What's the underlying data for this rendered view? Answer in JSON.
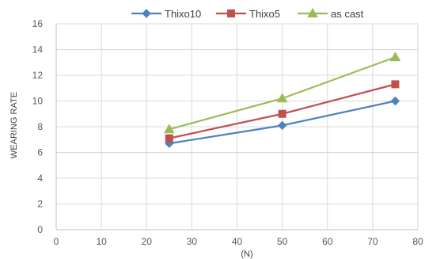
{
  "chart_data": {
    "type": "line",
    "title": "",
    "xlabel": "(N)",
    "ylabel": "WEARING RATE",
    "xlim": [
      0,
      80
    ],
    "ylim": [
      0,
      16
    ],
    "x_ticks": [
      "0",
      "10",
      "20",
      "30",
      "40",
      "50",
      "60",
      "70",
      "80"
    ],
    "y_ticks": [
      "0",
      "2",
      "4",
      "6",
      "8",
      "10",
      "12",
      "14",
      "16"
    ],
    "grid": true,
    "legend_position": "top",
    "series": [
      {
        "name": "Thixo10",
        "color": "#4F81BD",
        "marker": "diamond",
        "x": [
          25,
          50,
          75
        ],
        "values": [
          6.7,
          8.1,
          10.0
        ]
      },
      {
        "name": "Thixo5",
        "color": "#C0504D",
        "marker": "square",
        "x": [
          25,
          50,
          75
        ],
        "values": [
          7.1,
          9.0,
          11.3
        ]
      },
      {
        "name": "as cast",
        "color": "#9BBB59",
        "marker": "triangle",
        "x": [
          25,
          50,
          75
        ],
        "values": [
          7.8,
          10.2,
          13.4
        ]
      }
    ]
  }
}
